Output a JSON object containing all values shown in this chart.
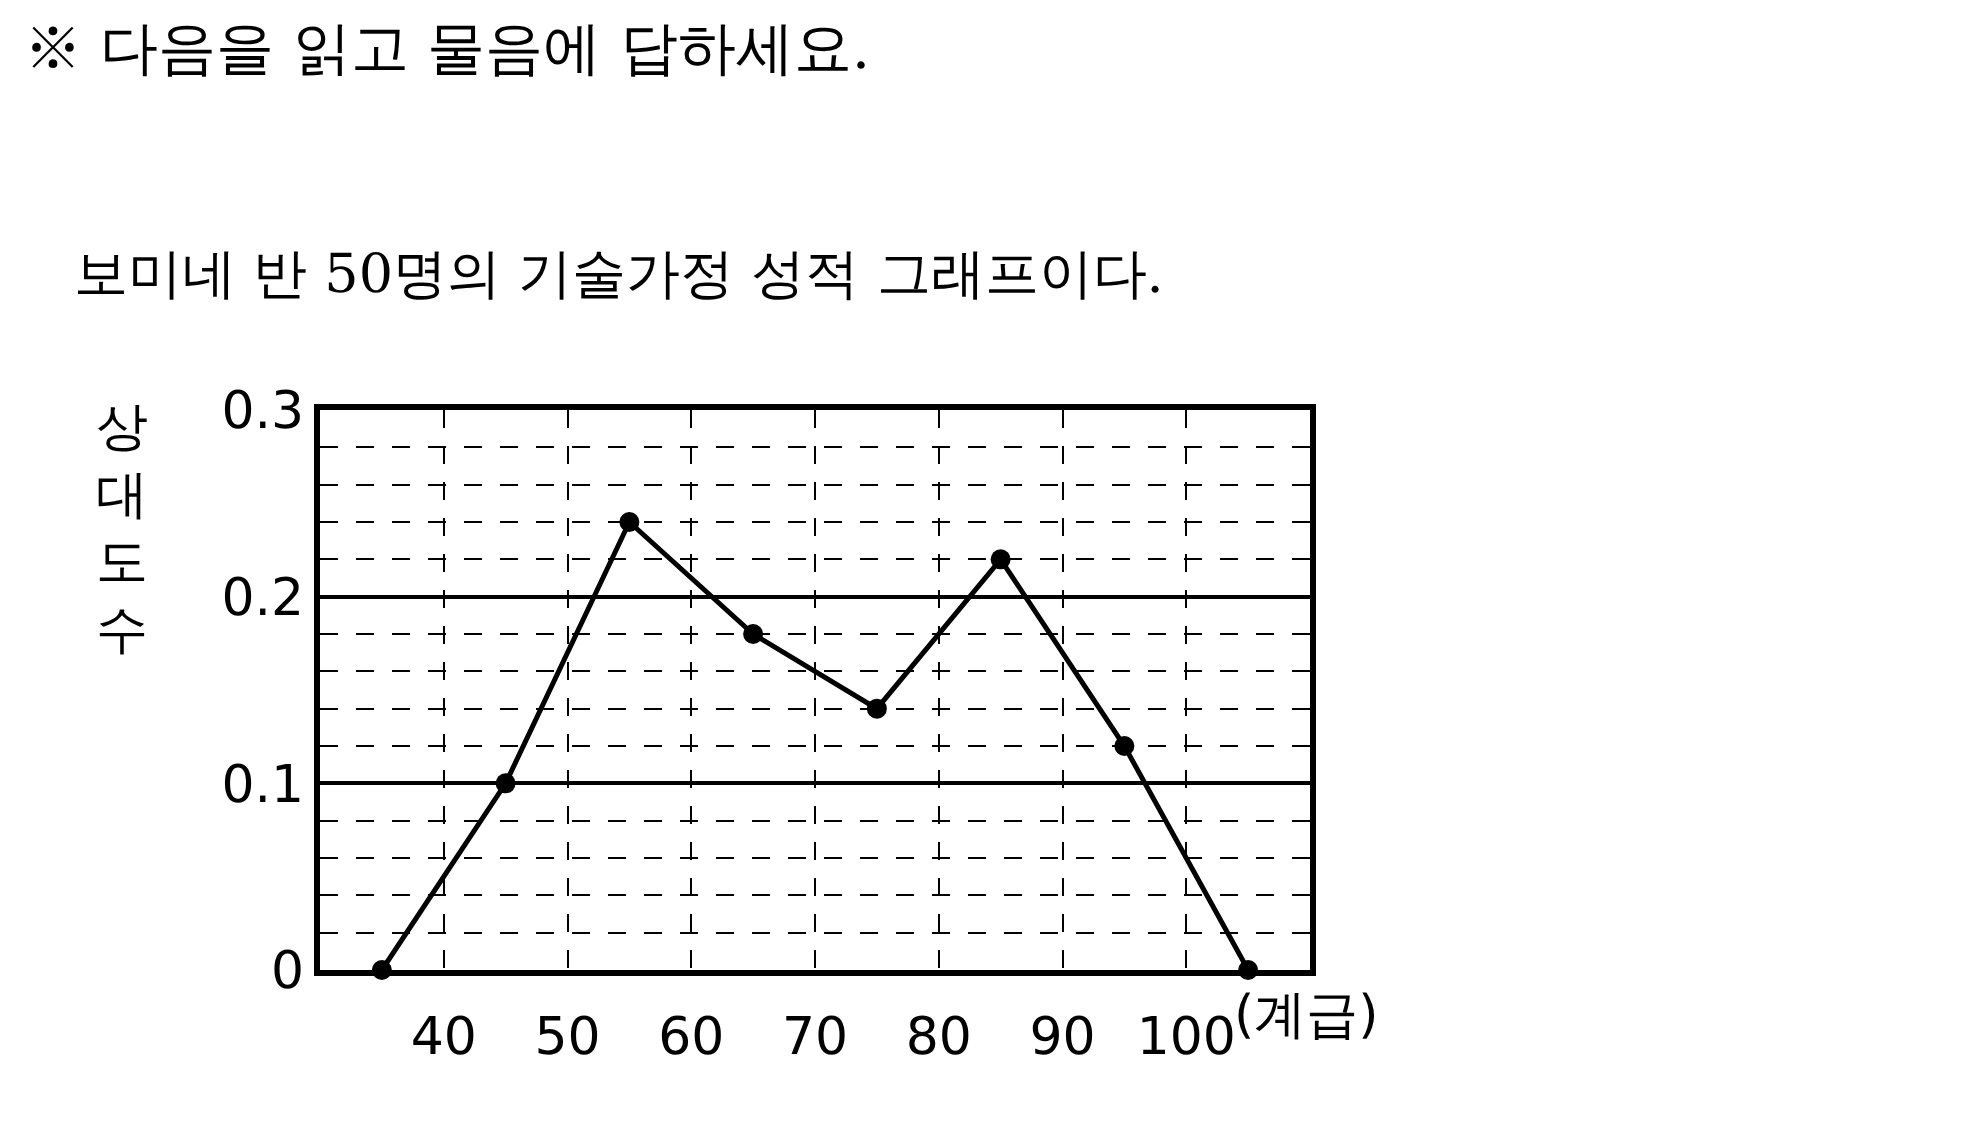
{
  "chart_data": {
    "type": "line",
    "title": "※ 다음을 읽고 물음에 답하세요.",
    "subtitle": "보미네 반 50명의 기술가정 성적 그래프이다.",
    "xlabel": "(계급)",
    "ylabel": "상대도수",
    "x": [
      35,
      45,
      55,
      65,
      75,
      85,
      95,
      105
    ],
    "series": [
      {
        "color": "#000000",
        "values": [
          0,
          0.1,
          0.24,
          0.18,
          0.14,
          0.22,
          0.12,
          0
        ]
      }
    ],
    "xlim": [
      30,
      110
    ],
    "xticks": [
      40,
      50,
      60,
      70,
      80,
      90,
      100
    ],
    "ylim": [
      0,
      0.3
    ],
    "yticks": [
      0,
      {
        "value": 0.02,
        "label": null
      },
      {
        "value": 0.04,
        "label": null
      },
      {
        "value": 0.06,
        "label": null
      },
      {
        "value": 0.08,
        "label": null
      },
      0.1,
      {
        "value": 0.12,
        "label": null
      },
      {
        "value": 0.14,
        "label": null
      },
      {
        "value": 0.16,
        "label": null
      },
      {
        "value": 0.18,
        "label": null
      },
      0.2,
      {
        "value": 0.22,
        "label": null
      },
      {
        "value": 0.24,
        "label": null
      },
      {
        "value": 0.26,
        "label": null
      },
      {
        "value": 0.28,
        "label": null
      },
      0.3
    ],
    "grid": true,
    "marker": "circle",
    "line_style": "solid",
    "legend": false
  }
}
